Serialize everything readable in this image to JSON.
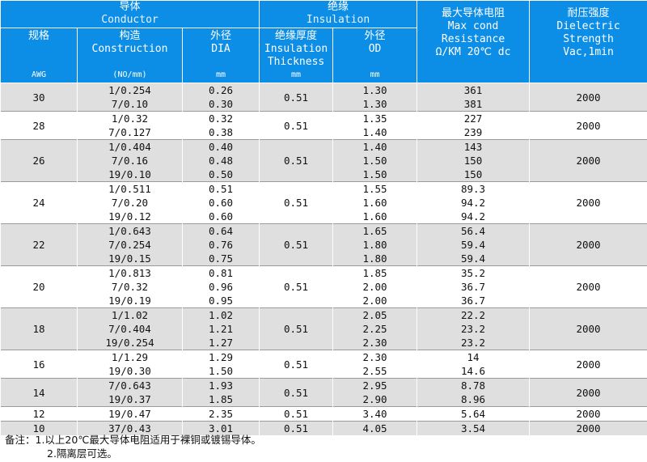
{
  "header": {
    "conductor_zh": "导体",
    "conductor_en": "Conductor",
    "insulation_zh": "绝缘",
    "insulation_en": "Insulation",
    "size_zh": "规格",
    "size_unit": "AWG",
    "construction_zh": "构造",
    "construction_en": "Construction",
    "construction_unit": "(NO/mm)",
    "dia_zh": "外径",
    "dia_en": "DIA",
    "dia_unit": "mm",
    "ins_thk_zh": "绝缘厚度",
    "ins_thk_en1": "Insulation",
    "ins_thk_en2": "Thickness",
    "ins_thk_unit": "mm",
    "od_zh": "外径",
    "od_en": "OD",
    "od_unit": "mm",
    "res_zh": "最大导体电阻",
    "res_en1": "Max cond",
    "res_en2": "Resistance",
    "res_en3": "Ω/KM 20℃ dc",
    "volt_zh": "耐压强度",
    "volt_en1": "Dielectric",
    "volt_en2": "Strength",
    "volt_en3": "Vac,1min"
  },
  "groups": [
    {
      "awg": "30",
      "thk": "0.51",
      "volt": "2000",
      "rows": [
        [
          "1/0.254",
          "0.26",
          "1.30",
          "361"
        ],
        [
          "7/0.10",
          "0.30",
          "1.30",
          "381"
        ]
      ]
    },
    {
      "awg": "28",
      "thk": "0.51",
      "volt": "2000",
      "rows": [
        [
          "1/0.32",
          "0.32",
          "1.35",
          "227"
        ],
        [
          "7/0.127",
          "0.38",
          "1.40",
          "239"
        ]
      ]
    },
    {
      "awg": "26",
      "thk": "0.51",
      "volt": "2000",
      "rows": [
        [
          "1/0.404",
          "0.40",
          "1.40",
          "143"
        ],
        [
          "7/0.16",
          "0.48",
          "1.50",
          "150"
        ],
        [
          "19/0.10",
          "0.50",
          "1.50",
          "150"
        ]
      ]
    },
    {
      "awg": "24",
      "thk": "0.51",
      "volt": "2000",
      "rows": [
        [
          "1/0.511",
          "0.51",
          "1.55",
          "89.3"
        ],
        [
          "7/0.20",
          "0.60",
          "1.60",
          "94.2"
        ],
        [
          "19/0.12",
          "0.60",
          "1.60",
          "94.2"
        ]
      ]
    },
    {
      "awg": "22",
      "thk": "0.51",
      "volt": "2000",
      "rows": [
        [
          "1/0.643",
          "0.64",
          "1.65",
          "56.4"
        ],
        [
          "7/0.254",
          "0.76",
          "1.80",
          "59.4"
        ],
        [
          "19/0.15",
          "0.75",
          "1.80",
          "59.4"
        ]
      ]
    },
    {
      "awg": "20",
      "thk": "0.51",
      "volt": "2000",
      "rows": [
        [
          "1/0.813",
          "0.81",
          "1.85",
          "35.2"
        ],
        [
          "7/0.32",
          "0.96",
          "2.00",
          "36.7"
        ],
        [
          "19/0.19",
          "0.95",
          "2.00",
          "36.7"
        ]
      ]
    },
    {
      "awg": "18",
      "thk": "0.51",
      "volt": "2000",
      "rows": [
        [
          "1/1.02",
          "1.02",
          "2.05",
          "22.2"
        ],
        [
          "7/0.404",
          "1.21",
          "2.25",
          "23.2"
        ],
        [
          "19/0.254",
          "1.27",
          "2.30",
          "23.2"
        ]
      ]
    },
    {
      "awg": "16",
      "thk": "0.51",
      "volt": "2000",
      "rows": [
        [
          "1/1.29",
          "1.29",
          "2.30",
          "14"
        ],
        [
          "19/0.30",
          "1.50",
          "2.55",
          "14.6"
        ]
      ]
    },
    {
      "awg": "14",
      "thk": "0.51",
      "volt": "2000",
      "rows": [
        [
          "7/0.643",
          "1.93",
          "2.95",
          "8.78"
        ],
        [
          "19/0.37",
          "1.85",
          "2.90",
          "8.96"
        ]
      ]
    },
    {
      "awg": "12",
      "thk": "0.51",
      "volt": "2000",
      "rows": [
        [
          "19/0.47",
          "2.35",
          "3.40",
          "5.64"
        ]
      ]
    },
    {
      "awg": "10",
      "thk": "0.51",
      "volt": "2000",
      "rows": [
        [
          "37/0.43",
          "3.01",
          "4.05",
          "3.54"
        ]
      ]
    }
  ],
  "notes": {
    "line1": "备注：1.以上20℃最大导体电阻适用于裸铜或镀锡导体。",
    "line2": "2.隔离层可选。"
  }
}
